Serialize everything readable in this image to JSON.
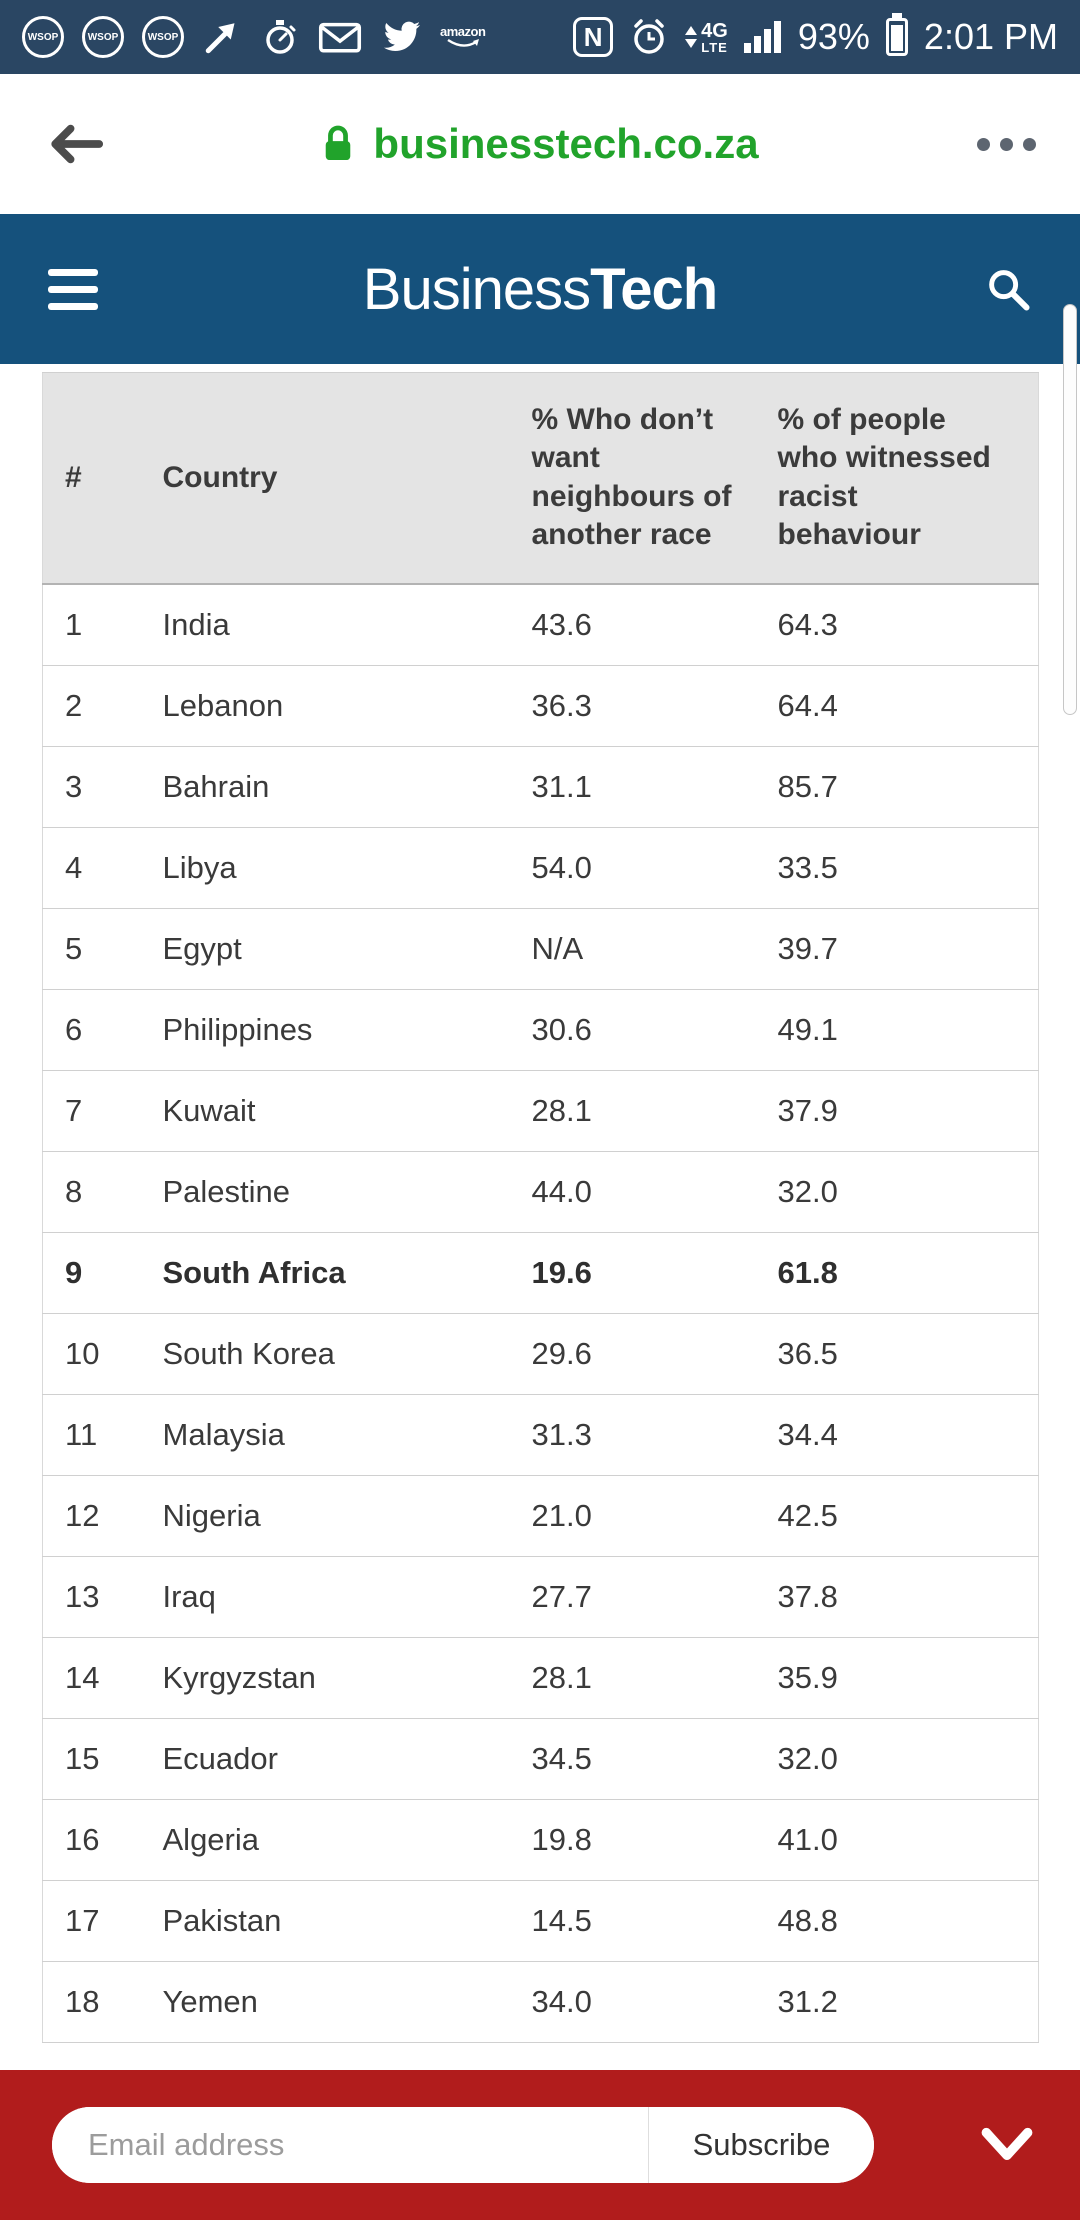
{
  "status_bar": {
    "wsop_label": "WSOP",
    "amazon_label": "amazon",
    "nfc_label": "N",
    "network_top": "4G",
    "network_bottom": "LTE",
    "battery_percent": "93%",
    "time": "2:01 PM"
  },
  "browser_bar": {
    "url": "businesstech.co.za"
  },
  "app_header": {
    "title_regular": "Business",
    "title_bold": "Tech"
  },
  "table": {
    "headers": [
      "#",
      "Country",
      "% Who don’t want neighbours of another race",
      "% of people who witnessed racist behaviour"
    ],
    "rows": [
      {
        "rank": "1",
        "country": "India",
        "neighbours": "43.6",
        "witnessed": "64.3",
        "bold": false
      },
      {
        "rank": "2",
        "country": "Lebanon",
        "neighbours": "36.3",
        "witnessed": "64.4",
        "bold": false
      },
      {
        "rank": "3",
        "country": "Bahrain",
        "neighbours": "31.1",
        "witnessed": "85.7",
        "bold": false
      },
      {
        "rank": "4",
        "country": "Libya",
        "neighbours": "54.0",
        "witnessed": "33.5",
        "bold": false
      },
      {
        "rank": "5",
        "country": "Egypt",
        "neighbours": "N/A",
        "witnessed": "39.7",
        "bold": false
      },
      {
        "rank": "6",
        "country": "Philippines",
        "neighbours": "30.6",
        "witnessed": "49.1",
        "bold": false
      },
      {
        "rank": "7",
        "country": "Kuwait",
        "neighbours": "28.1",
        "witnessed": "37.9",
        "bold": false
      },
      {
        "rank": "8",
        "country": "Palestine",
        "neighbours": "44.0",
        "witnessed": "32.0",
        "bold": false
      },
      {
        "rank": "9",
        "country": "South Africa",
        "neighbours": "19.6",
        "witnessed": "61.8",
        "bold": true
      },
      {
        "rank": "10",
        "country": "South Korea",
        "neighbours": "29.6",
        "witnessed": "36.5",
        "bold": false
      },
      {
        "rank": "11",
        "country": "Malaysia",
        "neighbours": "31.3",
        "witnessed": "34.4",
        "bold": false
      },
      {
        "rank": "12",
        "country": "Nigeria",
        "neighbours": "21.0",
        "witnessed": "42.5",
        "bold": false
      },
      {
        "rank": "13",
        "country": "Iraq",
        "neighbours": "27.7",
        "witnessed": "37.8",
        "bold": false
      },
      {
        "rank": "14",
        "country": "Kyrgyzstan",
        "neighbours": "28.1",
        "witnessed": "35.9",
        "bold": false
      },
      {
        "rank": "15",
        "country": "Ecuador",
        "neighbours": "34.5",
        "witnessed": "32.0",
        "bold": false
      },
      {
        "rank": "16",
        "country": "Algeria",
        "neighbours": "19.8",
        "witnessed": "41.0",
        "bold": false
      },
      {
        "rank": "17",
        "country": "Pakistan",
        "neighbours": "14.5",
        "witnessed": "48.8",
        "bold": false
      },
      {
        "rank": "18",
        "country": "Yemen",
        "neighbours": "34.0",
        "witnessed": "31.2",
        "bold": false
      }
    ]
  },
  "subscribe_bar": {
    "email_placeholder": "Email address",
    "subscribe_label": "Subscribe"
  }
}
